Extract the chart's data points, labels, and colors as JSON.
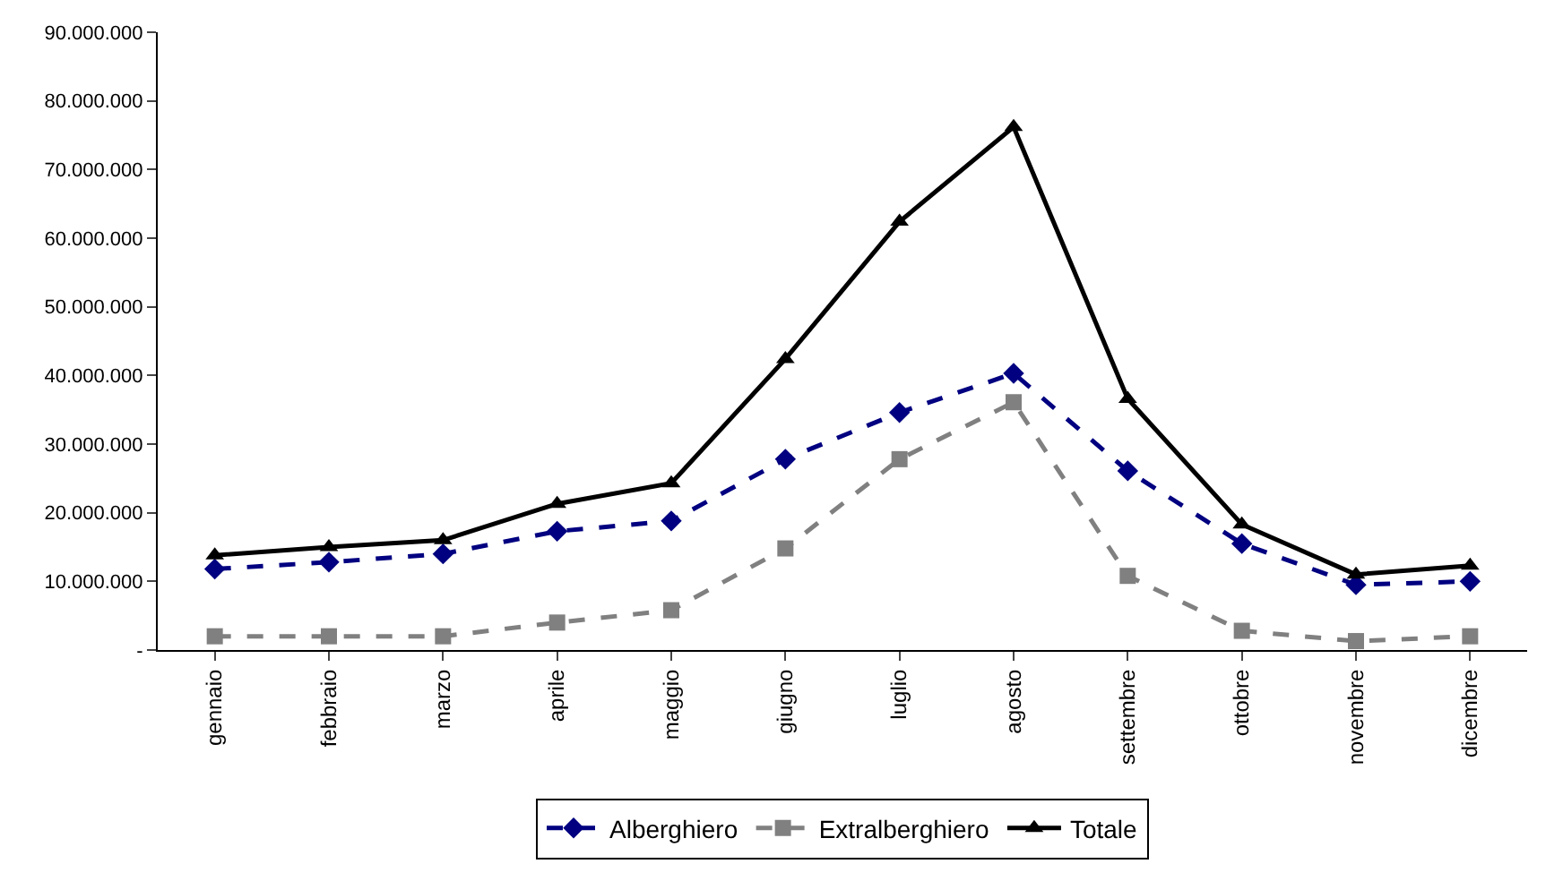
{
  "chart_data": {
    "type": "line",
    "categories": [
      "gennaio",
      "febbraio",
      "marzo",
      "aprile",
      "maggio",
      "giugno",
      "luglio",
      "agosto",
      "settembre",
      "ottobre",
      "novembre",
      "dicembre"
    ],
    "series": [
      {
        "name": "Alberghiero",
        "color": "#000080",
        "marker": "diamond",
        "line_style": "dashed",
        "values": [
          11800000,
          12800000,
          14000000,
          17300000,
          18800000,
          27800000,
          34600000,
          40300000,
          26100000,
          15500000,
          9500000,
          10000000
        ]
      },
      {
        "name": "Extralberghiero",
        "color": "#808080",
        "marker": "square",
        "line_style": "dashed",
        "values": [
          2000000,
          2000000,
          2000000,
          4000000,
          5800000,
          14800000,
          27800000,
          36100000,
          10800000,
          2800000,
          1300000,
          2000000
        ]
      },
      {
        "name": "Totale",
        "color": "#000000",
        "marker": "triangle",
        "line_style": "solid",
        "values": [
          13800000,
          15000000,
          16000000,
          21300000,
          24300000,
          42400000,
          62400000,
          76200000,
          36600000,
          18300000,
          11000000,
          12300000
        ]
      }
    ],
    "ylim": [
      0,
      90000000
    ],
    "yticks": [
      {
        "value": 0,
        "label": "-"
      },
      {
        "value": 10000000,
        "label": "10.000.000"
      },
      {
        "value": 20000000,
        "label": "20.000.000"
      },
      {
        "value": 30000000,
        "label": "30.000.000"
      },
      {
        "value": 40000000,
        "label": "40.000.000"
      },
      {
        "value": 50000000,
        "label": "50.000.000"
      },
      {
        "value": 60000000,
        "label": "60.000.000"
      },
      {
        "value": 70000000,
        "label": "70.000.000"
      },
      {
        "value": 80000000,
        "label": "80.000.000"
      },
      {
        "value": 90000000,
        "label": "90.000.000"
      }
    ],
    "grid": false,
    "legend": "bottom"
  }
}
